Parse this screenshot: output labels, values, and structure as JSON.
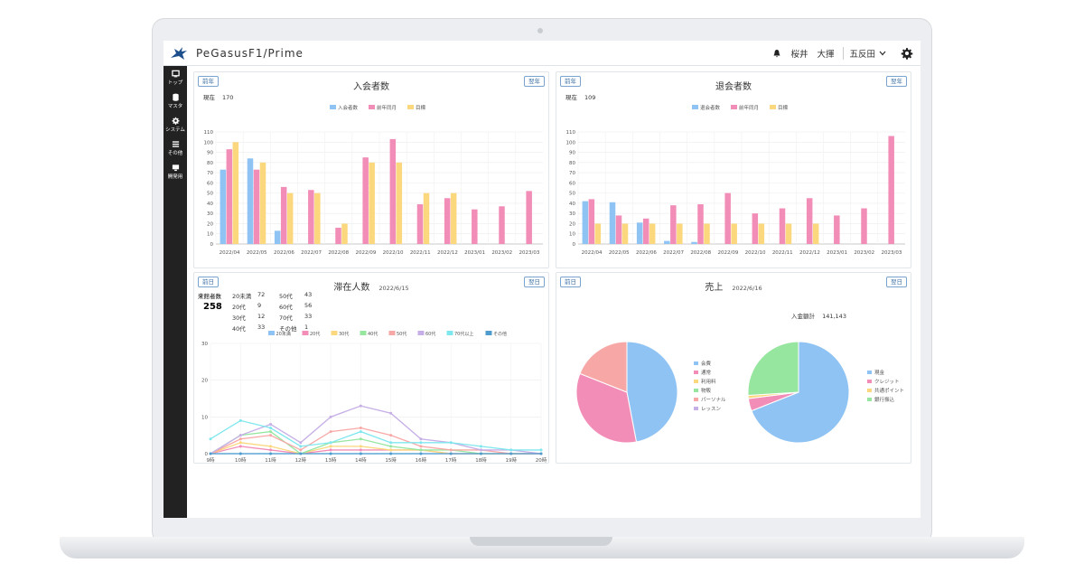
{
  "app": {
    "brand": "PeGasusF1/Prime",
    "user_last": "桜井",
    "user_first": "大揮",
    "store": "五反田"
  },
  "sidebar": {
    "items": [
      {
        "label": "トップ",
        "icon": "monitor-icon"
      },
      {
        "label": "マスタ",
        "icon": "database-icon"
      },
      {
        "label": "システム",
        "icon": "gear-icon"
      },
      {
        "label": "その他",
        "icon": "list-icon"
      },
      {
        "label": "開発用",
        "icon": "desktop-icon"
      }
    ]
  },
  "colors": {
    "blue": "#8ec3f3",
    "pink": "#f28db8",
    "yellow": "#fbd77e",
    "green": "#96e6a0",
    "salmon": "#f7a8a6",
    "purple": "#c6aee6",
    "cyan": "#7fe7ee",
    "teal": "#4f9ccf"
  },
  "panels": {
    "join": {
      "title": "入会者数",
      "prev": "前年",
      "next": "翌年",
      "current_label": "現在",
      "current_value": "170"
    },
    "leave": {
      "title": "退会者数",
      "prev": "前年",
      "next": "翌年",
      "current_label": "現在",
      "current_value": "109"
    },
    "stay": {
      "title": "滞在人数",
      "date": "2022/6/15",
      "prev": "前日",
      "next": "翌日",
      "visitors_label": "来館者数",
      "visitors_value": "258",
      "age_stats": [
        [
          "20未満",
          "72",
          "50代",
          "43"
        ],
        [
          "20代",
          "9",
          "60代",
          "56"
        ],
        [
          "30代",
          "12",
          "70代",
          "33"
        ],
        [
          "40代",
          "33",
          "その他",
          "1"
        ]
      ]
    },
    "sales": {
      "title": "売上",
      "date": "2022/6/16",
      "prev": "前日",
      "next": "翌日",
      "total_label": "入金額計",
      "total_value": "141,143"
    }
  },
  "chart_data": [
    {
      "type": "bar",
      "categories": [
        "2022/04",
        "2022/05",
        "2022/06",
        "2022/07",
        "2022/08",
        "2022/09",
        "2022/10",
        "2022/11",
        "2022/12",
        "2023/01",
        "2023/02",
        "2023/03"
      ],
      "ylim": [
        0,
        110
      ],
      "yticks": [
        0,
        10,
        20,
        30,
        40,
        50,
        60,
        70,
        80,
        90,
        100,
        110
      ],
      "series": [
        {
          "name": "入会者数",
          "values": [
            73,
            84,
            13,
            0,
            0,
            0,
            0,
            0,
            0,
            0,
            0,
            0
          ]
        },
        {
          "name": "前年同月",
          "values": [
            93,
            73,
            56,
            53,
            16,
            85,
            103,
            39,
            45,
            34,
            37,
            52
          ]
        },
        {
          "name": "目標",
          "values": [
            100,
            80,
            50,
            50,
            20,
            80,
            80,
            50,
            50,
            0,
            0,
            0
          ]
        }
      ]
    },
    {
      "type": "bar",
      "categories": [
        "2022/04",
        "2022/05",
        "2022/06",
        "2022/07",
        "2022/08",
        "2022/09",
        "2022/10",
        "2022/11",
        "2022/12",
        "2023/01",
        "2023/02",
        "2023/03"
      ],
      "ylim": [
        0,
        110
      ],
      "yticks": [
        0,
        10,
        20,
        30,
        40,
        50,
        60,
        70,
        80,
        90,
        100,
        110
      ],
      "series": [
        {
          "name": "退会者数",
          "values": [
            42,
            41,
            21,
            3,
            2,
            0,
            0,
            0,
            0,
            0,
            0,
            0
          ]
        },
        {
          "name": "前年同月",
          "values": [
            44,
            28,
            25,
            38,
            39,
            50,
            30,
            35,
            45,
            28,
            35,
            106
          ]
        },
        {
          "name": "目標",
          "values": [
            20,
            20,
            20,
            20,
            20,
            20,
            20,
            20,
            20,
            0,
            0,
            0
          ]
        }
      ]
    },
    {
      "type": "line",
      "x": [
        "9時",
        "10時",
        "11時",
        "12時",
        "13時",
        "14時",
        "15時",
        "16時",
        "17時",
        "18時",
        "19時",
        "20時"
      ],
      "ylim": [
        0,
        30
      ],
      "yticks": [
        0,
        10,
        20,
        30
      ],
      "series": [
        {
          "name": "20未満",
          "values": [
            0,
            0,
            0,
            0,
            0,
            0,
            0,
            0,
            0,
            0,
            0,
            0
          ]
        },
        {
          "name": "20代",
          "values": [
            0,
            2,
            1,
            0,
            1,
            1,
            1,
            1,
            0,
            0,
            0,
            0
          ]
        },
        {
          "name": "30代",
          "values": [
            0,
            3,
            2,
            0,
            2,
            2,
            1,
            1,
            0,
            0,
            0,
            0
          ]
        },
        {
          "name": "40代",
          "values": [
            0,
            5,
            6,
            0,
            3,
            4,
            2,
            1,
            1,
            0,
            0,
            0
          ]
        },
        {
          "name": "50代",
          "values": [
            0,
            4,
            5,
            1,
            6,
            7,
            5,
            2,
            1,
            1,
            0,
            0
          ]
        },
        {
          "name": "60代",
          "values": [
            0,
            5,
            8,
            3,
            10,
            13,
            11,
            4,
            3,
            1,
            1,
            0
          ]
        },
        {
          "name": "70代以上",
          "values": [
            4,
            9,
            7,
            2,
            3,
            6,
            3,
            3,
            3,
            2,
            1,
            1
          ]
        },
        {
          "name": "その他",
          "values": [
            0,
            0,
            0,
            0,
            0,
            0,
            0,
            0,
            0,
            0,
            0,
            0
          ]
        }
      ]
    },
    {
      "type": "pie",
      "slices": [
        {
          "name": "会費",
          "value": 47
        },
        {
          "name": "通常",
          "value": 34
        },
        {
          "name": "利用料",
          "value": 0
        },
        {
          "name": "物販",
          "value": 0
        },
        {
          "name": "パーソナル",
          "value": 19
        },
        {
          "name": "レッスン",
          "value": 0
        }
      ]
    },
    {
      "type": "pie",
      "slices": [
        {
          "name": "現金",
          "value": 69
        },
        {
          "name": "クレジット",
          "value": 4
        },
        {
          "name": "共通ポイント",
          "value": 1
        },
        {
          "name": "銀行振込",
          "value": 26
        }
      ]
    }
  ]
}
